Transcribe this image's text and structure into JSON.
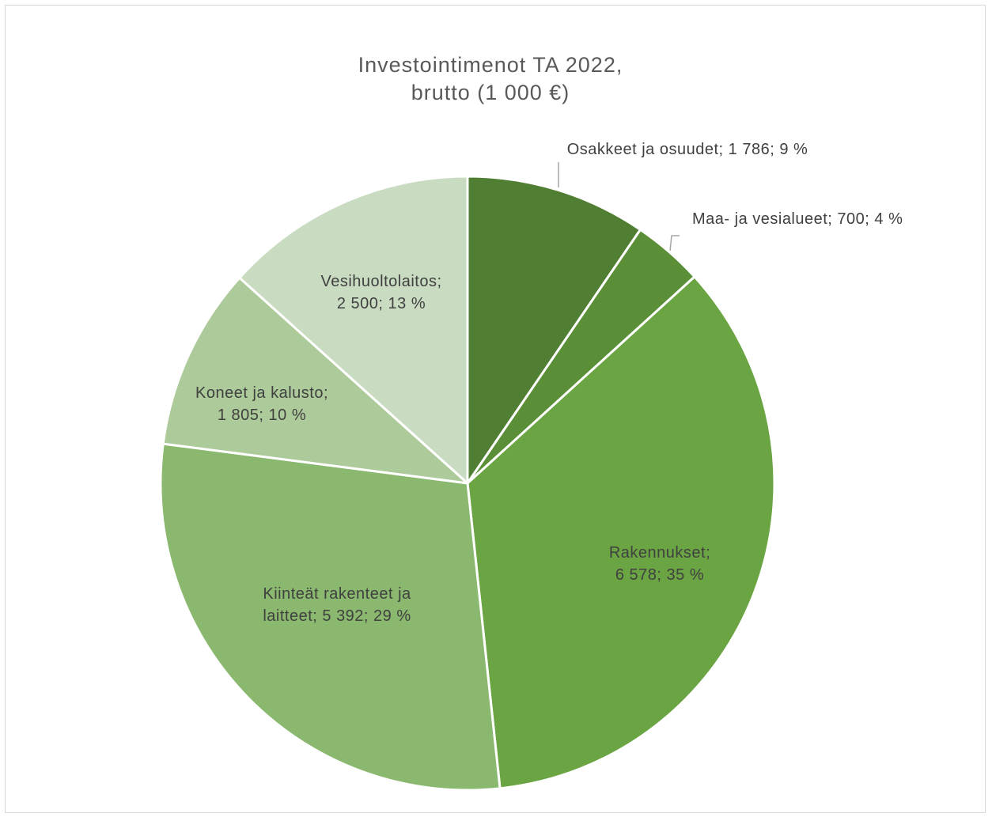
{
  "chart_data": {
    "type": "pie",
    "title_lines": [
      "Investointimenot TA 2022,",
      "brutto (1 000 €)"
    ],
    "slices": [
      {
        "name": "Osakkeet ja osuudet",
        "value": 1786,
        "percent": 9,
        "color": "#507e32",
        "label_lines": [
          "Osakkeet ja osuudet; 1 786; 9 %"
        ]
      },
      {
        "name": "Maa- ja vesialueet",
        "value": 700,
        "percent": 4,
        "color": "#5a8f37",
        "label_lines": [
          "Maa- ja vesialueet; 700; 4 %"
        ]
      },
      {
        "name": "Rakennukset",
        "value": 6578,
        "percent": 35,
        "color": "#6ba543",
        "label_lines": [
          "Rakennukset;",
          "6 578; 35 %"
        ]
      },
      {
        "name": "Kiinteät rakenteet ja laitteet",
        "value": 5392,
        "percent": 29,
        "color": "#8ab86e",
        "label_lines": [
          "Kiinteät rakenteet ja",
          "laitteet; 5 392; 29 %"
        ]
      },
      {
        "name": "Koneet ja kalusto",
        "value": 1805,
        "percent": 10,
        "color": "#adcb9a",
        "label_lines": [
          "Koneet ja kalusto;",
          "1 805; 10 %"
        ]
      },
      {
        "name": "Vesihuoltolaitos",
        "value": 2500,
        "percent": 13,
        "color": "#c9dcc1",
        "label_lines": [
          "Vesihuoltolaitos;",
          "2 500; 13 %"
        ]
      }
    ],
    "start_angle": "12 o'clock",
    "direction": "clockwise",
    "legend": "none",
    "leader_line_color": "#a6a6a6"
  }
}
